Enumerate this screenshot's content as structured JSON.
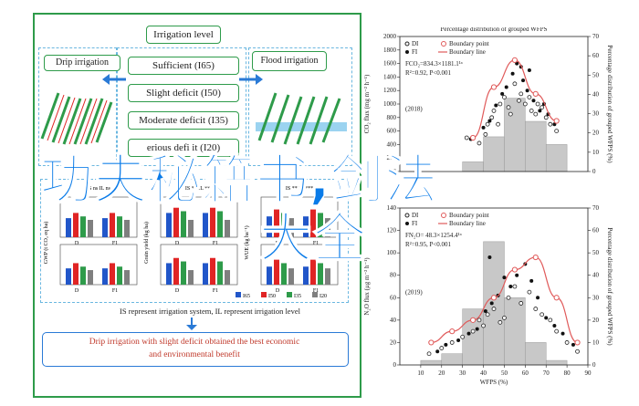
{
  "left_panel": {
    "top_title": "Irrigation level",
    "drip_label": "Drip irrigation",
    "flood_label": "Flood irrigation",
    "levels": [
      "Sufficient (I65)",
      "Slight deficit (I50)",
      "Moderate deficit (I35)",
      "erious defi it (I20)"
    ],
    "mini_panels": [
      {
        "ylabel": "GWP (t CO₂ eq ha)",
        "axis_labels": [
          "D",
          "F1"
        ],
        "top_label": "IS ns IL ns"
      },
      {
        "ylabel": "Grain yield (kg ha)",
        "axis_labels": [
          "D",
          "F1"
        ],
        "top_label": "IS ** IL ***"
      },
      {
        "ylabel": "WUE (kg ha⁻¹)",
        "axis_labels": [
          "D",
          "F1"
        ],
        "top_label": "IS ** IL ***"
      }
    ],
    "legend_items": [
      "I65",
      "I50",
      "I35",
      "I20"
    ],
    "note": "IS represent irrigation system, IL represent irrigation level",
    "conclusion_line1": "Drip irrigation with slight deficit obtained the best economic",
    "conclusion_line2": "and environmental benefit"
  },
  "overlay": {
    "line1": "功夫秘籍书,剑法",
    "line2": "大全"
  },
  "colors": {
    "frame_green": "#2e9b4a",
    "dash_blue": "#6bb7e0",
    "banner_blue": "#0a7be8",
    "bar_blue": "#2156c9",
    "bar_red": "#e02424",
    "bar_green": "#2e9b4a",
    "bar_gray": "#7f7f7f",
    "curve_red": "#e05a5a",
    "hist_gray": "#c8c8c8"
  },
  "chart_data": [
    {
      "type": "scatter",
      "title": "Percentage distribution of grouped WFPS",
      "year_label": "(2018)",
      "ylabel": "CO₂ flux (mg m⁻² h⁻¹)",
      "y2label": "Percentage distribution of grouped WFPS (%)",
      "legend": [
        "DI",
        "FI",
        "Boundary point",
        "Boundary line"
      ],
      "equation": "FCO₂=834.3×1181.1¹ᵃ",
      "r2": "R²=0.92, P<0.001",
      "ylim": [
        0,
        2000
      ],
      "yticks": [
        0,
        200,
        400,
        600,
        800,
        1000,
        1200,
        1400,
        1600,
        1800,
        2000
      ],
      "y2lim": [
        0,
        70
      ],
      "y2ticks": [
        0,
        10,
        20,
        30,
        40,
        50,
        60,
        70
      ],
      "hist_bins": [
        [
          30,
          40,
          5
        ],
        [
          40,
          50,
          18
        ],
        [
          50,
          60,
          38
        ],
        [
          60,
          70,
          26
        ],
        [
          70,
          80,
          14
        ]
      ],
      "boundary_points": [
        [
          35,
          500
        ],
        [
          45,
          1250
        ],
        [
          55,
          1650
        ],
        [
          65,
          1150
        ],
        [
          75,
          750
        ]
      ],
      "points_di": [
        [
          32,
          500
        ],
        [
          38,
          420
        ],
        [
          42,
          700
        ],
        [
          45,
          900
        ],
        [
          48,
          1000
        ],
        [
          50,
          1100
        ],
        [
          52,
          950
        ],
        [
          55,
          1300
        ],
        [
          58,
          1150
        ],
        [
          60,
          1000
        ],
        [
          62,
          1100
        ],
        [
          65,
          850
        ],
        [
          68,
          950
        ],
        [
          70,
          800
        ],
        [
          72,
          700
        ],
        [
          75,
          600
        ],
        [
          44,
          800
        ],
        [
          47,
          700
        ],
        [
          53,
          850
        ],
        [
          57,
          1050
        ],
        [
          63,
          900
        ],
        [
          66,
          1000
        ],
        [
          41,
          550
        ]
      ],
      "points_fi": [
        [
          34,
          480
        ],
        [
          40,
          650
        ],
        [
          46,
          980
        ],
        [
          51,
          1250
        ],
        [
          54,
          1450
        ],
        [
          56,
          1600
        ],
        [
          59,
          1350
        ],
        [
          61,
          1200
        ],
        [
          64,
          1050
        ],
        [
          67,
          900
        ],
        [
          71,
          850
        ],
        [
          74,
          700
        ],
        [
          43,
          750
        ],
        [
          49,
          1150
        ],
        [
          58,
          1550
        ],
        [
          62,
          1500
        ],
        [
          69,
          1000
        ]
      ]
    },
    {
      "type": "scatter",
      "year_label": "(2019)",
      "xlabel": "WFPS (%)",
      "ylabel": "N₂O flux (μg m⁻² h⁻¹)",
      "y2label": "Percentage distribution of grouped WFPS (%)",
      "legend": [
        "DI",
        "FI",
        "Boundary point",
        "Boundary line"
      ],
      "equation": "FN₂O= 48.3×1254.4¹ᵃ",
      "r2": "R²=0.95, P<0.001",
      "xlim": [
        0,
        90
      ],
      "xticks": [
        10,
        20,
        30,
        40,
        50,
        60,
        70,
        80,
        90
      ],
      "ylim": [
        0,
        140
      ],
      "yticks": [
        0,
        20,
        40,
        60,
        80,
        100,
        120,
        140
      ],
      "y2lim": [
        0,
        70
      ],
      "y2ticks": [
        0,
        10,
        20,
        30,
        40,
        50,
        60,
        70
      ],
      "hist_bins": [
        [
          10,
          20,
          2
        ],
        [
          20,
          30,
          5
        ],
        [
          30,
          40,
          25
        ],
        [
          40,
          50,
          55
        ],
        [
          50,
          60,
          30
        ],
        [
          60,
          70,
          10
        ],
        [
          70,
          80,
          2
        ]
      ],
      "boundary_points": [
        [
          15,
          20
        ],
        [
          25,
          30
        ],
        [
          35,
          40
        ],
        [
          45,
          60
        ],
        [
          55,
          85
        ],
        [
          65,
          96
        ],
        [
          75,
          60
        ],
        [
          85,
          20
        ]
      ],
      "points_di": [
        [
          14,
          10
        ],
        [
          20,
          15
        ],
        [
          25,
          20
        ],
        [
          30,
          25
        ],
        [
          35,
          30
        ],
        [
          38,
          40
        ],
        [
          42,
          45
        ],
        [
          45,
          50
        ],
        [
          48,
          38
        ],
        [
          52,
          60
        ],
        [
          55,
          70
        ],
        [
          58,
          55
        ],
        [
          62,
          65
        ],
        [
          65,
          50
        ],
        [
          68,
          45
        ],
        [
          72,
          40
        ],
        [
          75,
          30
        ],
        [
          80,
          20
        ],
        [
          85,
          12
        ],
        [
          40,
          35
        ],
        [
          50,
          42
        ]
      ],
      "points_fi": [
        [
          18,
          12
        ],
        [
          22,
          18
        ],
        [
          28,
          22
        ],
        [
          33,
          28
        ],
        [
          37,
          32
        ],
        [
          41,
          48
        ],
        [
          44,
          55
        ],
        [
          47,
          62
        ],
        [
          50,
          78
        ],
        [
          53,
          70
        ],
        [
          56,
          80
        ],
        [
          60,
          90
        ],
        [
          63,
          75
        ],
        [
          66,
          60
        ],
        [
          70,
          42
        ],
        [
          74,
          35
        ],
        [
          78,
          28
        ],
        [
          83,
          18
        ],
        [
          43,
          96
        ]
      ]
    }
  ]
}
